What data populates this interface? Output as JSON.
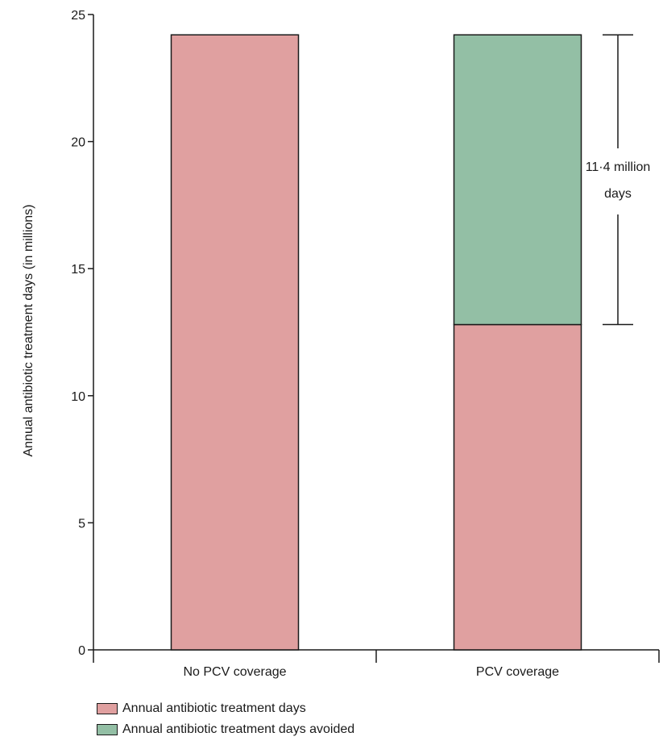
{
  "chart_data": {
    "type": "bar",
    "stacked": true,
    "categories": [
      "No PCV coverage",
      "PCV coverage"
    ],
    "series": [
      {
        "name": "Annual antibiotic treatment days",
        "values": [
          24.2,
          12.8
        ],
        "color": "#e0a0a0"
      },
      {
        "name": "Annual antibiotic treatment days avoided",
        "values": [
          0,
          11.4
        ],
        "color": "#93bfa5"
      }
    ],
    "ylabel": "Annual antibiotic treatment days (in millions)",
    "xlabel": "",
    "ylim": [
      0,
      25
    ],
    "yticks": [
      0,
      5,
      10,
      15,
      20,
      25
    ],
    "grid": false,
    "legend_position": "bottom-left",
    "annotation": {
      "line1": "11·4 million",
      "line2": "days",
      "from_value": 12.8,
      "to_value": 24.2
    }
  }
}
